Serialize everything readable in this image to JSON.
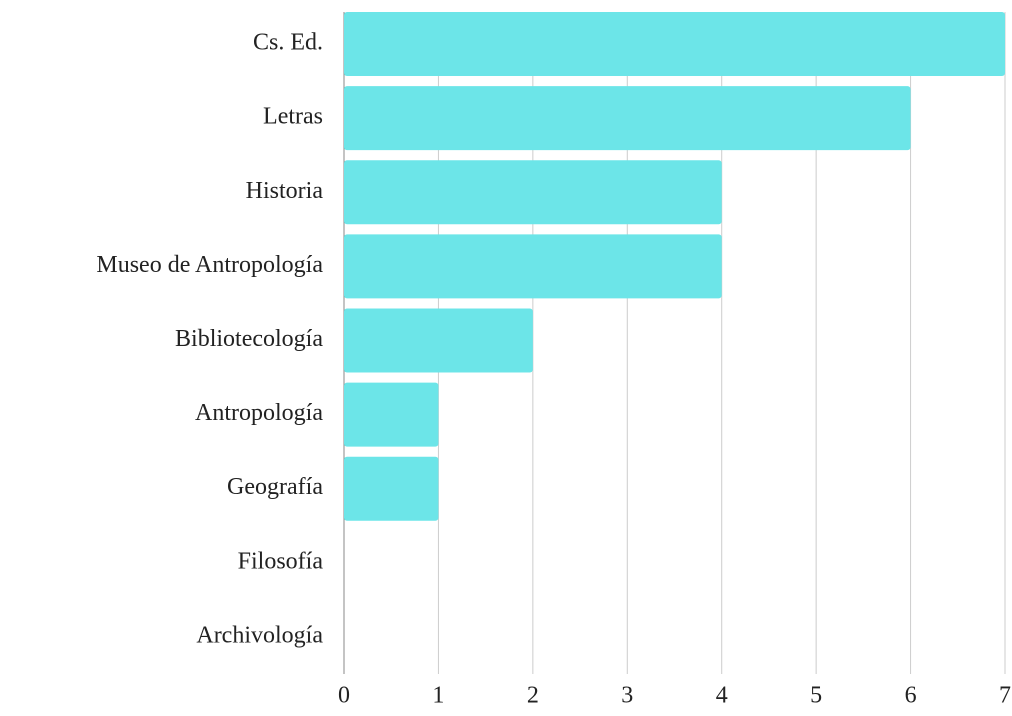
{
  "chart_data": {
    "type": "bar",
    "orientation": "horizontal",
    "categories": [
      "Cs. Ed.",
      "Letras",
      "Historia",
      "Museo de Antropología",
      "Bibliotecología",
      "Antropología",
      "Geografía",
      "Filosofía",
      "Archivología"
    ],
    "values": [
      7,
      6,
      4,
      4,
      2,
      1,
      1,
      0,
      0
    ],
    "color": "#6ce5e8",
    "xlim": [
      0,
      7
    ],
    "xticks": [
      0,
      1,
      2,
      3,
      4,
      5,
      6,
      7
    ],
    "grid": true
  }
}
